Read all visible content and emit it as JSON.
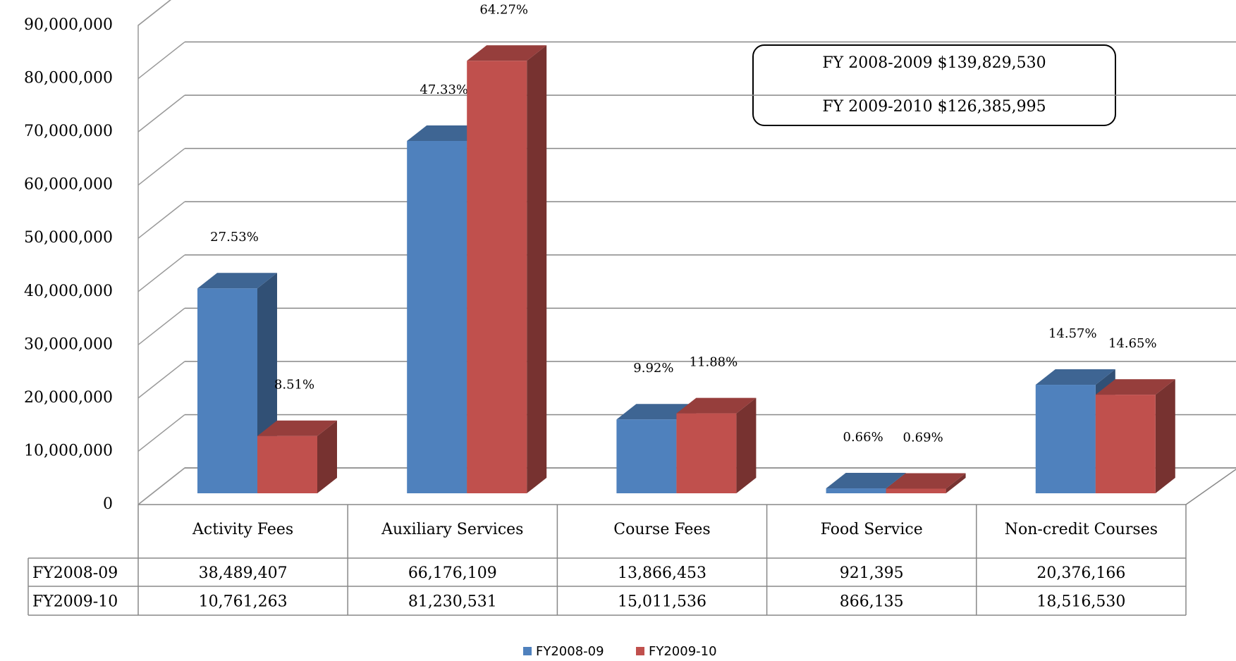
{
  "chart_data": {
    "type": "bar3d",
    "categories": [
      "Activity Fees",
      "Auxiliary Services",
      "Course Fees",
      "Food Service",
      "Non-credit Courses"
    ],
    "series": [
      {
        "name": "FY2008-09",
        "color": "#4f81bd",
        "values": [
          38489407,
          66176109,
          13866453,
          921395,
          20376166
        ],
        "value_labels": [
          "38,489,407",
          "66,176,109",
          "13,866,453",
          "921,395",
          "20,376,166"
        ],
        "percent_labels": [
          "27.53%",
          "47.33%",
          "9.92%",
          "0.66%",
          "14.57%"
        ]
      },
      {
        "name": "FY2009-10",
        "color": "#c0504d",
        "values": [
          10761263,
          81230531,
          15011536,
          866135,
          18516530
        ],
        "value_labels": [
          "10,761,263",
          "81,230,531",
          "15,011,536",
          "866,135",
          "18,516,530"
        ],
        "percent_labels": [
          "8.51%",
          "64.27%",
          "11.88%",
          "0.69%",
          "14.65%"
        ]
      }
    ],
    "ylim": [
      0,
      90000000
    ],
    "yticks": [
      0,
      {
        "value": 10000000,
        "label": "10,000,000"
      },
      {
        "value": 20000000,
        "label": "20,000,000"
      },
      {
        "value": 30000000,
        "label": "30,000,000"
      },
      {
        "value": 40000000,
        "label": "40,000,000"
      },
      {
        "value": 50000000,
        "label": "50,000,000"
      },
      {
        "value": 60000000,
        "label": "60,000,000"
      },
      {
        "value": 70000000,
        "label": "70,000,000"
      },
      {
        "value": 80000000,
        "label": "80,000,000"
      },
      {
        "value": 90000000,
        "label": "90,000,000"
      }
    ],
    "grid": true,
    "legend": "bottom",
    "annotations": [
      "FY 2008-2009 $139,829,530",
      "FY 2009-2010 $126,385,995"
    ]
  }
}
